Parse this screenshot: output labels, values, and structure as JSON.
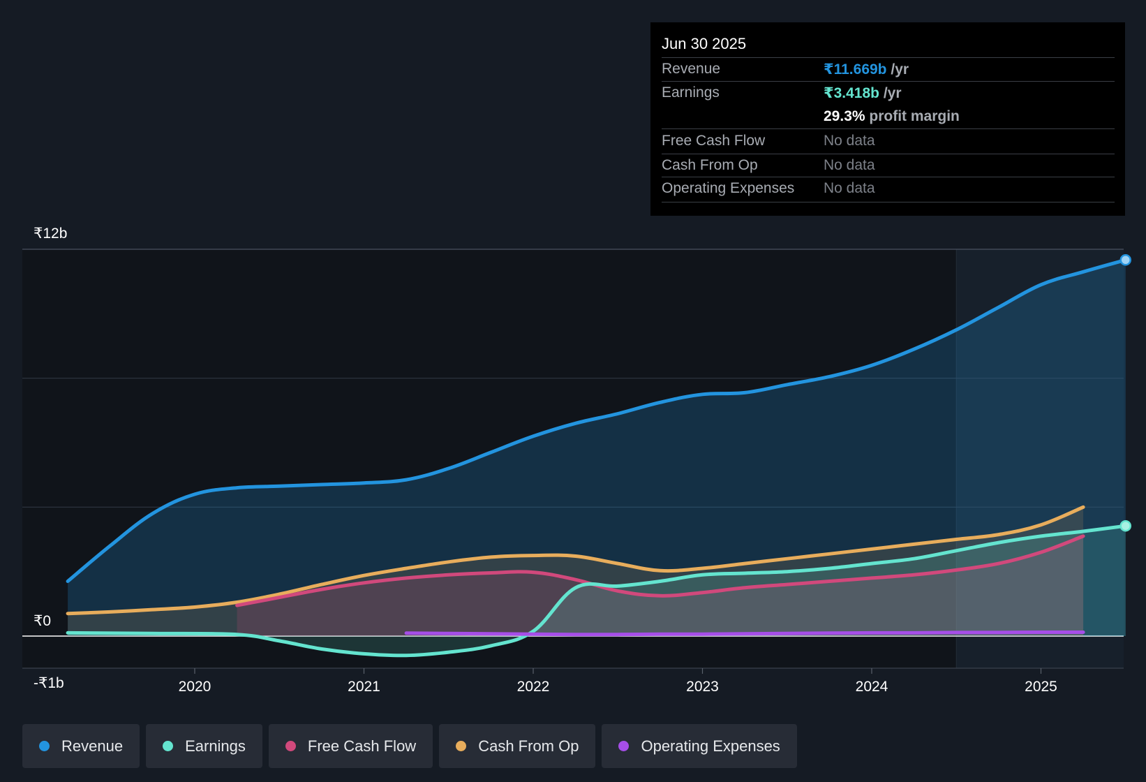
{
  "tooltip": {
    "date": "Jun 30 2025",
    "revenue_label": "Revenue",
    "revenue_value": "₹11.669b",
    "revenue_unit": "/yr",
    "earnings_label": "Earnings",
    "earnings_value": "₹3.418b",
    "earnings_unit": "/yr",
    "margin_value": "29.3%",
    "margin_text": "profit margin",
    "fcf_label": "Free Cash Flow",
    "fcf_value": "No data",
    "cfo_label": "Cash From Op",
    "cfo_value": "No data",
    "opex_label": "Operating Expenses",
    "opex_value": "No data"
  },
  "legend": {
    "revenue": "Revenue",
    "earnings": "Earnings",
    "fcf": "Free Cash Flow",
    "cfo": "Cash From Op",
    "opex": "Operating Expenses"
  },
  "colors": {
    "revenue": "#2394df",
    "earnings": "#64e4cf",
    "fcf": "#d1497c",
    "cfo": "#e8ad5c",
    "opex": "#a64ee8",
    "background": "#151b24",
    "past_region": "#10141a"
  },
  "chart_data": {
    "type": "line",
    "title": "",
    "xlabel": "",
    "ylabel": "",
    "y_tick_labels": [
      "₹12b",
      "₹0",
      "-₹1b"
    ],
    "y_tick_values": [
      12,
      0,
      -1
    ],
    "x_tick_labels": [
      "2020",
      "2021",
      "2022",
      "2023",
      "2024",
      "2025"
    ],
    "x_tick_values": [
      2020,
      2021,
      2022,
      2023,
      2024,
      2025
    ],
    "xlim": [
      2019.25,
      2025.5
    ],
    "ylim": [
      -1,
      12
    ],
    "past_data_end": 2024.5,
    "series": [
      {
        "key": "revenue",
        "name": "Revenue",
        "x": [
          2019.25,
          2019.5,
          2019.75,
          2020.0,
          2020.25,
          2020.5,
          2020.75,
          2021.0,
          2021.25,
          2021.5,
          2021.75,
          2022.0,
          2022.25,
          2022.5,
          2022.75,
          2023.0,
          2023.25,
          2023.5,
          2023.75,
          2024.0,
          2024.25,
          2024.5,
          2024.75,
          2025.0,
          2025.25,
          2025.5
        ],
        "values": [
          1.7,
          2.8,
          3.8,
          4.4,
          4.6,
          4.65,
          4.7,
          4.75,
          4.85,
          5.2,
          5.7,
          6.2,
          6.6,
          6.9,
          7.25,
          7.5,
          7.55,
          7.8,
          8.05,
          8.4,
          8.9,
          9.5,
          10.2,
          10.9,
          11.3,
          11.669
        ]
      },
      {
        "key": "earnings",
        "name": "Earnings",
        "x": [
          2019.25,
          2019.75,
          2020.25,
          2020.5,
          2020.75,
          2021.0,
          2021.25,
          2021.5,
          2021.75,
          2022.0,
          2022.25,
          2022.5,
          2022.75,
          2023.0,
          2023.25,
          2023.5,
          2023.75,
          2024.0,
          2024.25,
          2024.5,
          2024.75,
          2025.0,
          2025.25,
          2025.5
        ],
        "values": [
          0.1,
          0.08,
          0.05,
          -0.15,
          -0.4,
          -0.55,
          -0.6,
          -0.5,
          -0.3,
          0.15,
          1.5,
          1.55,
          1.7,
          1.9,
          1.95,
          2.0,
          2.1,
          2.25,
          2.4,
          2.65,
          2.9,
          3.1,
          3.25,
          3.418
        ]
      },
      {
        "key": "fcf",
        "name": "Free Cash Flow",
        "x": [
          2020.25,
          2020.5,
          2020.75,
          2021.0,
          2021.25,
          2021.5,
          2021.75,
          2022.0,
          2022.25,
          2022.5,
          2022.75,
          2023.0,
          2023.25,
          2023.5,
          2023.75,
          2024.0,
          2024.25,
          2024.5,
          2024.75,
          2025.0,
          2025.25
        ],
        "values": [
          0.95,
          1.2,
          1.45,
          1.65,
          1.8,
          1.9,
          1.96,
          1.98,
          1.75,
          1.4,
          1.25,
          1.35,
          1.5,
          1.6,
          1.7,
          1.8,
          1.9,
          2.05,
          2.25,
          2.6,
          3.1
        ]
      },
      {
        "key": "cfo",
        "name": "Cash From Op",
        "x": [
          2019.25,
          2019.5,
          2019.75,
          2020.0,
          2020.25,
          2020.5,
          2020.75,
          2021.0,
          2021.25,
          2021.5,
          2021.75,
          2022.0,
          2022.25,
          2022.5,
          2022.75,
          2023.0,
          2023.25,
          2023.5,
          2023.75,
          2024.0,
          2024.25,
          2024.5,
          2024.75,
          2025.0,
          2025.25
        ],
        "values": [
          0.7,
          0.75,
          0.82,
          0.9,
          1.05,
          1.3,
          1.6,
          1.88,
          2.1,
          2.3,
          2.45,
          2.5,
          2.48,
          2.25,
          2.03,
          2.1,
          2.25,
          2.4,
          2.55,
          2.7,
          2.85,
          3.0,
          3.15,
          3.45,
          4.0
        ]
      },
      {
        "key": "opex",
        "name": "Operating Expenses",
        "x": [
          2021.25,
          2021.5,
          2021.75,
          2022.0,
          2022.25,
          2022.5,
          2022.75,
          2023.0,
          2023.25,
          2023.5,
          2023.75,
          2024.0,
          2024.25,
          2024.5,
          2024.75,
          2025.0,
          2025.25
        ],
        "values": [
          0.09,
          0.08,
          0.07,
          0.06,
          0.05,
          0.05,
          0.06,
          0.06,
          0.07,
          0.08,
          0.09,
          0.1,
          0.1,
          0.11,
          0.11,
          0.12,
          0.12
        ]
      }
    ]
  }
}
